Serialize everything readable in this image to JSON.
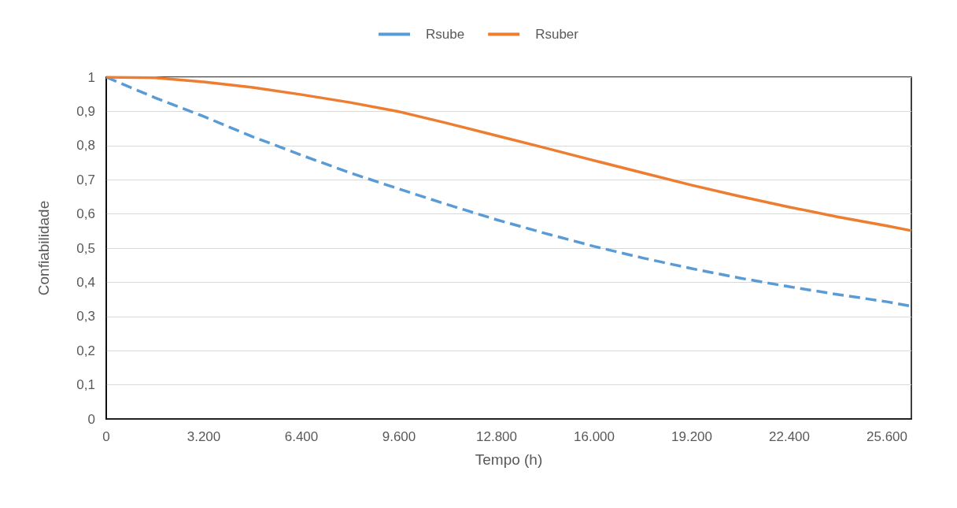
{
  "chart_data": {
    "type": "line",
    "xlabel": "Tempo (h)",
    "ylabel": "Confiabilidade",
    "x": [
      0,
      1600,
      3200,
      4800,
      6400,
      8000,
      9600,
      11200,
      12800,
      14400,
      16000,
      17600,
      19200,
      20800,
      22400,
      24000,
      25600,
      26400
    ],
    "series": [
      {
        "name": "Rsube",
        "color": "#5b9bd5",
        "line_style": "dashed",
        "values": [
          1,
          0.94,
          0.885,
          0.826,
          0.772,
          0.72,
          0.673,
          0.627,
          0.583,
          0.543,
          0.505,
          0.471,
          0.44,
          0.412,
          0.387,
          0.364,
          0.343,
          0.33
        ]
      },
      {
        "name": "Rsuber",
        "color": "#ed7d31",
        "line_style": "solid",
        "values": [
          1,
          0.998,
          0.986,
          0.97,
          0.949,
          0.926,
          0.899,
          0.865,
          0.829,
          0.793,
          0.756,
          0.72,
          0.684,
          0.651,
          0.62,
          0.591,
          0.565,
          0.551
        ]
      }
    ],
    "xlim": [
      0,
      26400
    ],
    "xticks": [
      {
        "value": 0,
        "label": "0"
      },
      {
        "value": 3200,
        "label": "3.200"
      },
      {
        "value": 6400,
        "label": "6.400"
      },
      {
        "value": 9600,
        "label": "9.600"
      },
      {
        "value": 12800,
        "label": "12.800"
      },
      {
        "value": 16000,
        "label": "16.000"
      },
      {
        "value": 19200,
        "label": "19.200"
      },
      {
        "value": 22400,
        "label": "22.400"
      },
      {
        "value": 25600,
        "label": "25.600"
      }
    ],
    "ylim": [
      0,
      1
    ],
    "yticks": [
      {
        "value": 0,
        "label": "0"
      },
      {
        "value": 0.1,
        "label": "0,1"
      },
      {
        "value": 0.2,
        "label": "0,2"
      },
      {
        "value": 0.3,
        "label": "0,3"
      },
      {
        "value": 0.4,
        "label": "0,4"
      },
      {
        "value": 0.5,
        "label": "0,5"
      },
      {
        "value": 0.6,
        "label": "0,6"
      },
      {
        "value": 0.7,
        "label": "0,7"
      },
      {
        "value": 0.8,
        "label": "0,8"
      },
      {
        "value": 0.9,
        "label": "0,9"
      },
      {
        "value": 1,
        "label": "1"
      }
    ],
    "grid": "y",
    "legend": "top",
    "marker": "none"
  }
}
